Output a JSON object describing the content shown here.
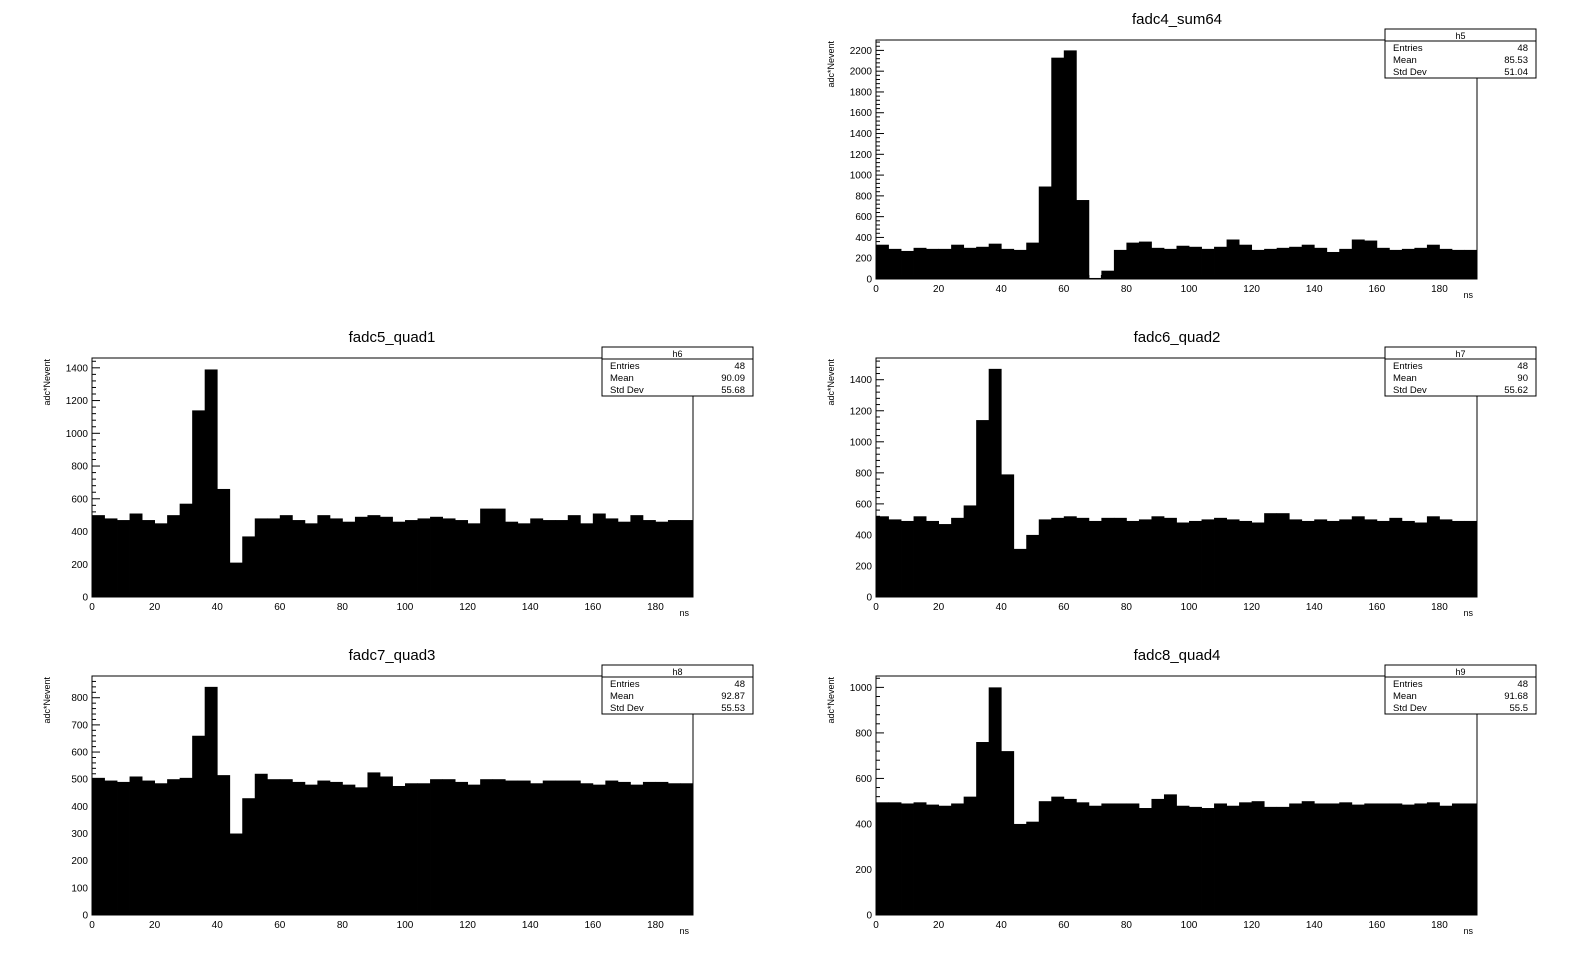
{
  "chart_data": [
    {
      "id": "h5",
      "type": "bar",
      "title": "fadc4_sum64",
      "xlabel": "ns",
      "ylabel": "adc*Nevent",
      "xlim": [
        0,
        192
      ],
      "ylim": [
        0,
        2300
      ],
      "xticks": [
        0,
        20,
        40,
        60,
        80,
        100,
        120,
        140,
        160,
        180
      ],
      "yticks": [
        0,
        200,
        400,
        600,
        800,
        1000,
        1200,
        1400,
        1600,
        1800,
        2000,
        2200
      ],
      "bin_width": 4,
      "values": [
        330,
        290,
        270,
        300,
        290,
        290,
        330,
        300,
        310,
        340,
        290,
        280,
        350,
        890,
        2130,
        2200,
        760,
        10,
        80,
        280,
        350,
        360,
        300,
        290,
        320,
        310,
        290,
        310,
        380,
        330,
        280,
        290,
        300,
        310,
        330,
        300,
        260,
        290,
        380,
        370,
        300,
        280,
        290,
        300,
        330,
        290,
        280,
        280
      ],
      "stats": {
        "name": "h5",
        "rows": [
          {
            "label": "Entries",
            "value": "48"
          },
          {
            "label": "Mean",
            "value": "85.53"
          },
          {
            "label": "Std Dev",
            "value": "51.04"
          }
        ]
      }
    },
    {
      "id": "h6",
      "type": "bar",
      "title": "fadc5_quad1",
      "xlabel": "ns",
      "ylabel": "adc*Nevent",
      "xlim": [
        0,
        192
      ],
      "ylim": [
        0,
        1460
      ],
      "xticks": [
        0,
        20,
        40,
        60,
        80,
        100,
        120,
        140,
        160,
        180
      ],
      "yticks": [
        0,
        200,
        400,
        600,
        800,
        1000,
        1200,
        1400
      ],
      "bin_width": 4,
      "values": [
        500,
        480,
        470,
        510,
        470,
        450,
        500,
        570,
        1140,
        1390,
        660,
        210,
        370,
        480,
        480,
        500,
        470,
        450,
        500,
        480,
        460,
        490,
        500,
        490,
        460,
        470,
        480,
        490,
        480,
        470,
        450,
        540,
        540,
        460,
        450,
        480,
        470,
        470,
        500,
        450,
        510,
        480,
        460,
        500,
        470,
        460,
        470,
        470
      ],
      "stats": {
        "name": "h6",
        "rows": [
          {
            "label": "Entries",
            "value": "48"
          },
          {
            "label": "Mean",
            "value": "90.09"
          },
          {
            "label": "Std Dev",
            "value": "55.68"
          }
        ]
      }
    },
    {
      "id": "h7",
      "type": "bar",
      "title": "fadc6_quad2",
      "xlabel": "ns",
      "ylabel": "adc*Nevent",
      "xlim": [
        0,
        192
      ],
      "ylim": [
        0,
        1540
      ],
      "xticks": [
        0,
        20,
        40,
        60,
        80,
        100,
        120,
        140,
        160,
        180
      ],
      "yticks": [
        0,
        200,
        400,
        600,
        800,
        1000,
        1200,
        1400
      ],
      "bin_width": 4,
      "values": [
        520,
        500,
        490,
        520,
        490,
        470,
        510,
        590,
        1140,
        1470,
        790,
        310,
        400,
        500,
        510,
        520,
        510,
        490,
        510,
        510,
        490,
        500,
        520,
        510,
        480,
        490,
        500,
        510,
        500,
        490,
        480,
        540,
        540,
        500,
        490,
        500,
        490,
        500,
        520,
        500,
        490,
        510,
        490,
        480,
        520,
        500,
        490,
        490
      ],
      "stats": {
        "name": "h7",
        "rows": [
          {
            "label": "Entries",
            "value": "48"
          },
          {
            "label": "Mean",
            "value": "90"
          },
          {
            "label": "Std Dev",
            "value": "55.62"
          }
        ]
      }
    },
    {
      "id": "h8",
      "type": "bar",
      "title": "fadc7_quad3",
      "xlabel": "ns",
      "ylabel": "adc*Nevent",
      "xlim": [
        0,
        192
      ],
      "ylim": [
        0,
        880
      ],
      "xticks": [
        0,
        20,
        40,
        60,
        80,
        100,
        120,
        140,
        160,
        180
      ],
      "yticks": [
        0,
        100,
        200,
        300,
        400,
        500,
        600,
        700,
        800
      ],
      "bin_width": 4,
      "values": [
        505,
        495,
        490,
        510,
        495,
        485,
        500,
        505,
        660,
        840,
        515,
        300,
        430,
        520,
        500,
        500,
        490,
        480,
        495,
        490,
        480,
        470,
        525,
        510,
        475,
        485,
        485,
        500,
        500,
        490,
        480,
        500,
        500,
        495,
        495,
        485,
        495,
        495,
        495,
        485,
        480,
        495,
        490,
        480,
        490,
        490,
        485,
        485
      ],
      "stats": {
        "name": "h8",
        "rows": [
          {
            "label": "Entries",
            "value": "48"
          },
          {
            "label": "Mean",
            "value": "92.87"
          },
          {
            "label": "Std Dev",
            "value": "55.53"
          }
        ]
      }
    },
    {
      "id": "h9",
      "type": "bar",
      "title": "fadc8_quad4",
      "xlabel": "ns",
      "ylabel": "adc*Nevent",
      "xlim": [
        0,
        192
      ],
      "ylim": [
        0,
        1050
      ],
      "xticks": [
        0,
        20,
        40,
        60,
        80,
        100,
        120,
        140,
        160,
        180
      ],
      "yticks": [
        0,
        200,
        400,
        600,
        800,
        1000
      ],
      "bin_width": 4,
      "values": [
        495,
        495,
        490,
        495,
        485,
        480,
        490,
        520,
        760,
        1000,
        720,
        400,
        410,
        500,
        520,
        510,
        495,
        480,
        490,
        490,
        490,
        470,
        510,
        530,
        480,
        475,
        470,
        490,
        480,
        495,
        500,
        475,
        475,
        490,
        500,
        490,
        490,
        495,
        485,
        490,
        490,
        490,
        485,
        490,
        495,
        480,
        490,
        490
      ],
      "stats": {
        "name": "h9",
        "rows": [
          {
            "label": "Entries",
            "value": "48"
          },
          {
            "label": "Mean",
            "value": "91.68"
          },
          {
            "label": "Std Dev",
            "value": "55.5"
          }
        ]
      }
    }
  ]
}
